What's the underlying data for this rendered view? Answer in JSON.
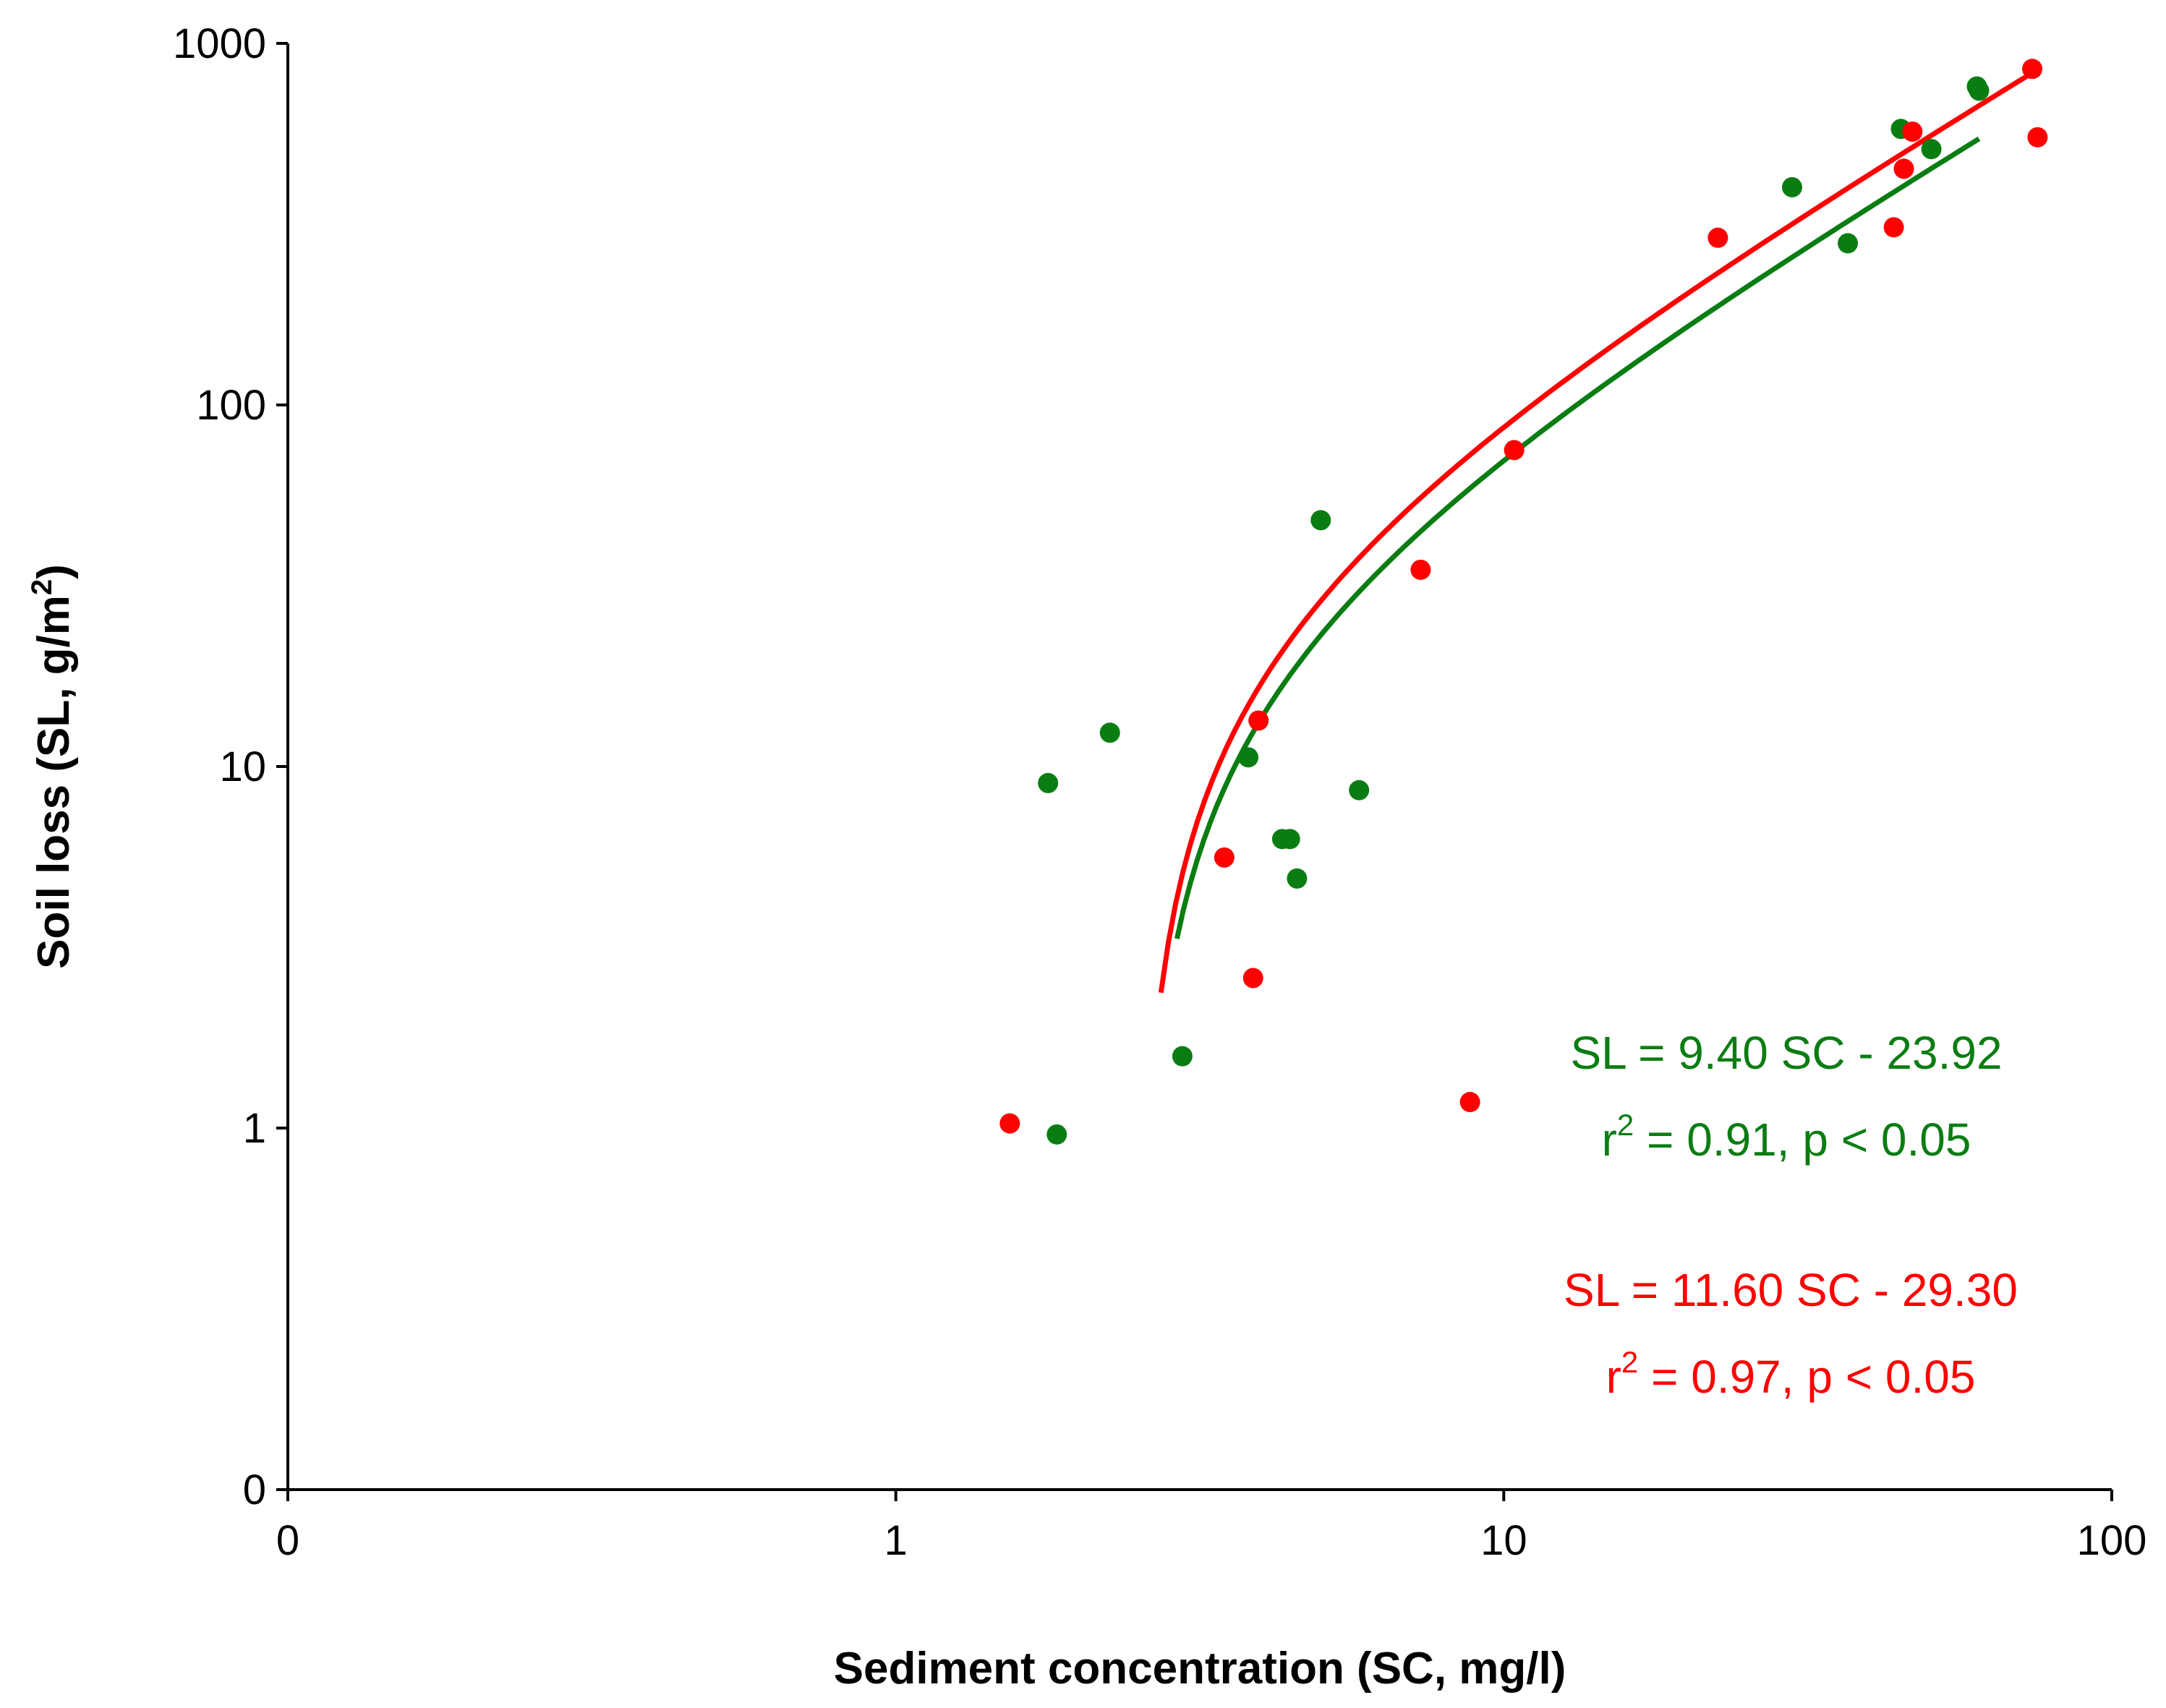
{
  "chart_data": {
    "type": "scatter",
    "title": "",
    "xlabel": "Sediment concentration (SC, mg/l)",
    "ylabel": {
      "prefix": "Soil loss (SL, g/m",
      "sup": "2",
      "suffix": ")"
    },
    "xscale": "log",
    "yscale": "log",
    "xlim": [
      0.1,
      100
    ],
    "ylim": [
      0.1,
      1000
    ],
    "xticks": [
      {
        "value": 0.1,
        "label": "0"
      },
      {
        "value": 1,
        "label": "1"
      },
      {
        "value": 10,
        "label": "10"
      },
      {
        "value": 100,
        "label": "100"
      }
    ],
    "yticks": [
      {
        "value": 0.1,
        "label": "0"
      },
      {
        "value": 1,
        "label": "1"
      },
      {
        "value": 10,
        "label": "10"
      },
      {
        "value": 100,
        "label": "100"
      },
      {
        "value": 1000,
        "label": "1000"
      }
    ],
    "series": [
      {
        "name": "green",
        "color": "#0a7d12",
        "points": [
          {
            "x": 1.78,
            "y": 9.0
          },
          {
            "x": 1.84,
            "y": 0.96
          },
          {
            "x": 2.25,
            "y": 12.4
          },
          {
            "x": 2.96,
            "y": 1.58
          },
          {
            "x": 3.8,
            "y": 10.6
          },
          {
            "x": 4.32,
            "y": 6.3
          },
          {
            "x": 4.45,
            "y": 6.3
          },
          {
            "x": 4.57,
            "y": 4.9
          },
          {
            "x": 5.0,
            "y": 48
          },
          {
            "x": 5.78,
            "y": 8.6
          },
          {
            "x": 29.8,
            "y": 400
          },
          {
            "x": 36.8,
            "y": 280
          },
          {
            "x": 45.0,
            "y": 580
          },
          {
            "x": 50.5,
            "y": 510
          },
          {
            "x": 60.0,
            "y": 760
          },
          {
            "x": 60.5,
            "y": 740
          }
        ],
        "fit": {
          "slope": 9.4,
          "intercept": -23.92,
          "x_range": [
            2.9,
            60.5
          ],
          "equation": "SL = 9.40 SC - 23.92",
          "r2_prefix": "r",
          "r2_sup": "2",
          "r2_text": " = 0.91, p < 0.05"
        }
      },
      {
        "name": "red",
        "color": "#ff0000",
        "points": [
          {
            "x": 1.54,
            "y": 1.03
          },
          {
            "x": 3.47,
            "y": 5.6
          },
          {
            "x": 3.87,
            "y": 2.6
          },
          {
            "x": 3.95,
            "y": 13.4
          },
          {
            "x": 7.3,
            "y": 35
          },
          {
            "x": 8.8,
            "y": 1.18
          },
          {
            "x": 10.4,
            "y": 75
          },
          {
            "x": 22.5,
            "y": 290
          },
          {
            "x": 43.8,
            "y": 310
          },
          {
            "x": 45.5,
            "y": 450
          },
          {
            "x": 47.0,
            "y": 570
          },
          {
            "x": 74.0,
            "y": 850
          },
          {
            "x": 75.5,
            "y": 550
          }
        ],
        "fit": {
          "slope": 11.6,
          "intercept": -29.3,
          "x_range": [
            2.73,
            76
          ],
          "equation": "SL = 11.60 SC - 29.30",
          "r2_prefix": "r",
          "r2_sup": "2",
          "r2_text": " = 0.97, p < 0.05"
        }
      }
    ]
  }
}
